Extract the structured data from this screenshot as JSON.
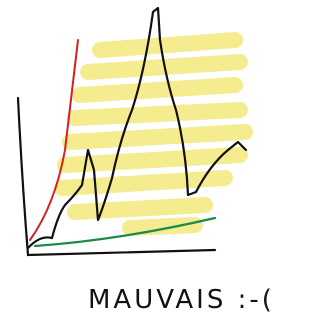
{
  "caption": "MAUVAIS :-("
}
